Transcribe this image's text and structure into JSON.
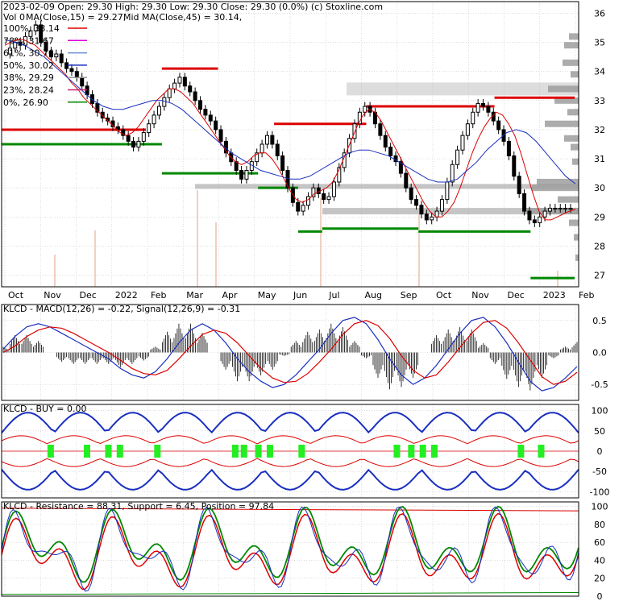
{
  "colors": {
    "background": "#ffffff",
    "grid": "#c8c8c8",
    "candle": "#000000",
    "ma_fast": "#dd0000",
    "ma_slow": "#1a2fbf",
    "resistance": "#dd0000",
    "support": "#008800",
    "volume_profile": "#9e9e9e",
    "fib_100": "#dd0000",
    "fib_78": "#dd00dd",
    "fib_61": "#6a8fd0",
    "fib_50": "#1a2fbf",
    "fib_38": "#9a9a9a",
    "fib_23": "#cc2277",
    "fib_0": "#008800",
    "buy_marker": "#22ee22"
  },
  "header": {
    "ticker": "KLCD",
    "date": "2023-02-09",
    "ohlc": "2023-02-09 Open: 29.30  High: 29.30  Low: 29.30  Close: 29.30 (0.0%)  (c) Stoxline.com",
    "vol": "Vol 0",
    "ma_fast": "MA(Close,15) = 29.27,",
    "ma_slow": "Mid MA(Close,45) = 30.14,"
  },
  "fib_levels": [
    {
      "pct": "100%",
      "value": "33.14",
      "y": 33.14
    },
    {
      "pct": "78%",
      "value": "31.67",
      "y": 31.67
    },
    {
      "pct": "61%",
      "value": "30.76",
      "y": 30.76
    },
    {
      "pct": "50%",
      "value": "30.02",
      "y": 30.02
    },
    {
      "pct": "38%",
      "value": "29.29",
      "y": 29.29
    },
    {
      "pct": "23%",
      "value": "28.24",
      "y": 28.24
    },
    {
      "pct": "0%",
      "value": "26.90",
      "y": 26.9
    }
  ],
  "chart_data": [
    {
      "type": "candlestick",
      "title": "KLCD 2023-02-09",
      "x_ticks": [
        "Oct",
        "Nov",
        "Dec",
        "2022",
        "Feb",
        "Mar",
        "Apr",
        "May",
        "Jun",
        "Jul",
        "Aug",
        "Sep",
        "Oct",
        "Nov",
        "Dec",
        "2023",
        "Feb"
      ],
      "y_ticks": [
        "27",
        "28",
        "29",
        "30",
        "31",
        "32",
        "33",
        "34",
        "35",
        "36"
      ],
      "ylim": [
        26.6,
        36.4
      ],
      "close_series": [
        34.6,
        34.8,
        35.0,
        34.9,
        35.2,
        35.4,
        35.6,
        35.0,
        34.7,
        34.5,
        34.6,
        34.3,
        34.1,
        34.0,
        33.8,
        33.5,
        33.2,
        32.9,
        32.6,
        32.4,
        32.3,
        32.1,
        32.0,
        31.8,
        31.6,
        31.4,
        31.6,
        31.9,
        32.2,
        32.5,
        32.8,
        33.1,
        33.4,
        33.6,
        33.8,
        33.5,
        33.3,
        33.0,
        32.7,
        32.5,
        32.3,
        32.0,
        31.6,
        31.2,
        30.9,
        30.6,
        30.3,
        30.6,
        30.9,
        31.2,
        31.5,
        31.8,
        31.5,
        31.1,
        30.6,
        30.0,
        29.5,
        29.2,
        29.4,
        29.7,
        30.0,
        29.8,
        29.6,
        29.7,
        30.2,
        30.7,
        31.2,
        31.7,
        32.2,
        32.6,
        32.8,
        32.6,
        32.2,
        31.8,
        31.4,
        31.1,
        30.9,
        30.5,
        30.0,
        29.6,
        29.4,
        29.1,
        28.9,
        29.0,
        29.2,
        29.6,
        30.2,
        30.8,
        31.3,
        31.8,
        32.2,
        32.6,
        32.9,
        32.8,
        32.6,
        32.3,
        32.0,
        31.6,
        31.1,
        30.4,
        29.8,
        29.2,
        28.9,
        28.8,
        29.0,
        29.2,
        29.3,
        29.3,
        29.3,
        29.3,
        29.3
      ],
      "ma_fast_series": [
        34.9,
        35.0,
        35.1,
        35.1,
        35.0,
        34.9,
        34.7,
        34.5,
        34.3,
        34.1,
        33.9,
        33.6,
        33.4,
        33.1,
        32.9,
        32.7,
        32.5,
        32.3,
        32.1,
        31.9,
        31.8,
        31.9,
        32.1,
        32.4,
        32.7,
        33.0,
        33.2,
        33.4,
        33.4,
        33.3,
        33.1,
        32.9,
        32.6,
        32.3,
        32.0,
        31.7,
        31.4,
        31.1,
        30.9,
        30.8,
        30.9,
        31.1,
        31.2,
        31.2,
        31.0,
        30.7,
        30.3,
        29.9,
        29.6,
        29.5,
        29.6,
        29.8,
        29.9,
        30.0,
        30.2,
        30.6,
        31.1,
        31.6,
        32.1,
        32.5,
        32.7,
        32.6,
        32.3,
        31.9,
        31.5,
        31.1,
        30.7,
        30.3,
        29.9,
        29.5,
        29.2,
        29.0,
        29.0,
        29.2,
        29.5,
        30.0,
        30.6,
        31.2,
        31.7,
        32.1,
        32.4,
        32.6,
        32.5,
        32.2,
        31.8,
        31.2,
        30.5,
        29.8,
        29.2,
        28.9,
        28.9,
        29.0,
        29.1,
        29.2,
        29.27
      ],
      "ma_slow_series": [
        35.1,
        35.0,
        34.9,
        34.7,
        34.5,
        34.2,
        33.9,
        33.6,
        33.3,
        33.0,
        32.8,
        32.7,
        32.7,
        32.8,
        32.9,
        33.0,
        33.0,
        32.9,
        32.7,
        32.4,
        32.1,
        31.8,
        31.5,
        31.2,
        31.0,
        30.8,
        30.6,
        30.5,
        30.4,
        30.3,
        30.3,
        30.4,
        30.6,
        30.8,
        31.0,
        31.2,
        31.3,
        31.3,
        31.2,
        31.1,
        30.9,
        30.7,
        30.5,
        30.3,
        30.2,
        30.2,
        30.3,
        30.6,
        30.9,
        31.3,
        31.6,
        31.9,
        32.0,
        31.9,
        31.6,
        31.2,
        30.8,
        30.4,
        30.14
      ],
      "volume_profile": [
        [
          35.2,
          12
        ],
        [
          34.9,
          18
        ],
        [
          34.3,
          20
        ],
        [
          33.9,
          10
        ],
        [
          33.4,
          38
        ],
        [
          33.0,
          30
        ],
        [
          32.6,
          14
        ],
        [
          32.2,
          42
        ],
        [
          31.7,
          18
        ],
        [
          31.4,
          10
        ],
        [
          30.9,
          8
        ],
        [
          30.2,
          52
        ],
        [
          30.0,
          58
        ],
        [
          29.6,
          26
        ],
        [
          29.2,
          70
        ],
        [
          28.8,
          12
        ],
        [
          28.3,
          6
        ],
        [
          27.6,
          4
        ]
      ],
      "resistance_segments": [
        [
          0.0,
          32.0,
          18.0,
          32.0
        ],
        [
          20.0,
          34.1,
          27.0,
          34.1
        ],
        [
          34.0,
          32.2,
          45.5,
          32.2
        ],
        [
          45.5,
          32.8,
          61.5,
          32.8
        ],
        [
          61.5,
          33.1,
          71.5,
          33.1
        ]
      ],
      "support_segments": [
        [
          0.0,
          31.5,
          20.0,
          31.5
        ],
        [
          20.0,
          30.5,
          32.0,
          30.5
        ],
        [
          32.0,
          30.0,
          37.0,
          30.0
        ],
        [
          37.0,
          28.5,
          40.0,
          28.5
        ],
        [
          40.0,
          28.6,
          52.0,
          28.6
        ],
        [
          52.0,
          28.5,
          66.0,
          28.5
        ],
        [
          66.0,
          26.9,
          71.5,
          26.9
        ]
      ]
    },
    {
      "type": "line",
      "title": "KLCD - MACD(12,26) = -0.22, Signal(12,26,9) = -0.31",
      "y_ticks": [
        "0.5",
        "0.0",
        "-0.5"
      ],
      "ylim": [
        -0.75,
        0.75
      ],
      "series": [
        {
          "name": "MACD(12,26)",
          "values": [
            0.05,
            0.25,
            0.4,
            0.45,
            0.4,
            0.3,
            0.2,
            0.1,
            0.0,
            -0.1,
            -0.25,
            -0.35,
            -0.4,
            -0.3,
            -0.1,
            0.15,
            0.35,
            0.45,
            0.35,
            0.15,
            -0.1,
            -0.3,
            -0.45,
            -0.55,
            -0.5,
            -0.35,
            -0.15,
            0.05,
            0.3,
            0.5,
            0.55,
            0.45,
            0.2,
            -0.1,
            -0.35,
            -0.5,
            -0.4,
            -0.2,
            0.05,
            0.3,
            0.5,
            0.55,
            0.4,
            0.15,
            -0.15,
            -0.45,
            -0.6,
            -0.55,
            -0.4,
            -0.22
          ]
        },
        {
          "name": "Signal(12,26,9)",
          "values": [
            0.0,
            0.1,
            0.25,
            0.35,
            0.4,
            0.38,
            0.3,
            0.2,
            0.1,
            0.0,
            -0.12,
            -0.25,
            -0.33,
            -0.35,
            -0.28,
            -0.1,
            0.1,
            0.28,
            0.35,
            0.3,
            0.15,
            -0.05,
            -0.25,
            -0.4,
            -0.47,
            -0.45,
            -0.33,
            -0.15,
            0.05,
            0.28,
            0.45,
            0.5,
            0.42,
            0.22,
            -0.05,
            -0.28,
            -0.4,
            -0.35,
            -0.15,
            0.08,
            0.3,
            0.47,
            0.5,
            0.38,
            0.15,
            -0.12,
            -0.38,
            -0.5,
            -0.45,
            -0.31
          ]
        }
      ]
    },
    {
      "type": "line",
      "title": "KLCD - BUY = 0.00",
      "y_ticks": [
        "100",
        "50",
        "0",
        "-50",
        "-100"
      ],
      "ylim": [
        -115,
        115
      ],
      "buy_positions": [
        0.085,
        0.148,
        0.185,
        0.205,
        0.27,
        0.405,
        0.42,
        0.445,
        0.465,
        0.52,
        0.685,
        0.71,
        0.73,
        0.75,
        0.9,
        0.935
      ]
    },
    {
      "type": "line",
      "title": "KLCD - Resistance = 88.31, Support = 6.45, Position = 97.84",
      "y_ticks": [
        "100",
        "80",
        "60",
        "40",
        "20",
        "0"
      ],
      "ylim": [
        0,
        105
      ],
      "series": [
        {
          "name": "Resistance",
          "values": [
            88.31
          ]
        },
        {
          "name": "Support",
          "values": [
            6.45
          ]
        },
        {
          "name": "Position",
          "values": [
            97.84
          ]
        }
      ]
    }
  ]
}
